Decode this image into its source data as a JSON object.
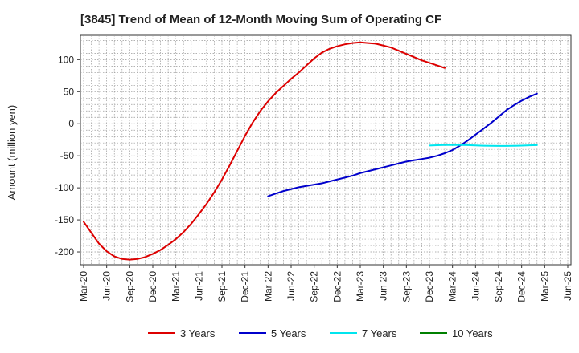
{
  "chart_data": {
    "type": "line",
    "title": "[3845]  Trend of Mean of 12-Month Moving Sum of Operating CF",
    "ylabel": "Amount (million yen)",
    "xlabel": "",
    "ylim": [
      -220,
      138
    ],
    "yticks": [
      100,
      50,
      0,
      -50,
      -100,
      -150,
      -200
    ],
    "x_tick_labels": [
      "Mar-20",
      "Jun-20",
      "Sep-20",
      "Dec-20",
      "Mar-21",
      "Jun-21",
      "Sep-21",
      "Dec-21",
      "Mar-22",
      "Jun-22",
      "Sep-22",
      "Dec-22",
      "Mar-23",
      "Jun-23",
      "Sep-23",
      "Dec-23",
      "Mar-24",
      "Jun-24",
      "Sep-24",
      "Dec-24",
      "Mar-25",
      "Jun-25"
    ],
    "grid": true,
    "series": [
      {
        "name": "3 Years",
        "color": "#dd0000",
        "start_index": 0,
        "values": [
          -153,
          -170,
          -187,
          -199,
          -207,
          -211,
          -212,
          -211,
          -208,
          -203,
          -197,
          -189,
          -180,
          -169,
          -156,
          -141,
          -125,
          -107,
          -87,
          -65,
          -42,
          -19,
          2,
          20,
          35,
          48,
          59,
          70,
          80,
          91,
          102,
          111,
          117,
          121,
          124,
          126,
          127,
          126,
          125,
          122,
          119,
          114,
          109,
          104,
          99,
          95,
          91,
          87
        ]
      },
      {
        "name": "5 Years",
        "color": "#0000cc",
        "start_index": 24,
        "values": [
          -113,
          -109,
          -105,
          -102,
          -99,
          -97,
          -95,
          -93,
          -90,
          -87,
          -84,
          -81,
          -77,
          -74,
          -71,
          -68,
          -65,
          -62,
          -59,
          -57,
          -55,
          -53,
          -50,
          -46,
          -41,
          -34,
          -26,
          -17,
          -8,
          1,
          11,
          21,
          29,
          36,
          42,
          47
        ]
      },
      {
        "name": "7 Years",
        "color": "#00e5ee",
        "start_index": 45,
        "values": [
          -34,
          -33.5,
          -33.2,
          -33,
          -33.1,
          -33.4,
          -33.8,
          -34.2,
          -34.5,
          -34.6,
          -34.6,
          -34.4,
          -34.1,
          -33.7,
          -33.3
        ]
      },
      {
        "name": "10 Years",
        "color": "#008000",
        "start_index": 0,
        "values": []
      }
    ]
  }
}
